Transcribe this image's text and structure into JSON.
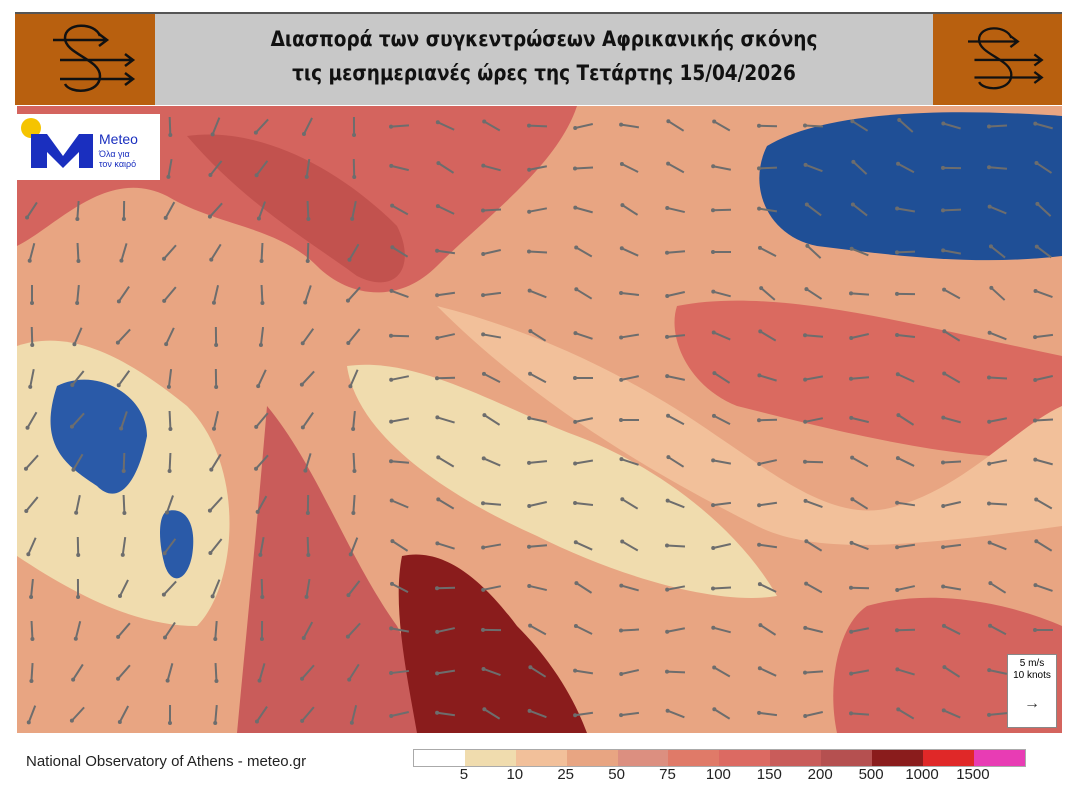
{
  "header": {
    "title_line1": "Διασπορά των συγκεντρώσεων Αφρικανικής σκόνης",
    "title_line2": "τις μεσημεριανές ώρες της Τετάρτης 15/04/2026",
    "badge_icon": "dust-wind-icon"
  },
  "logo": {
    "name": "Meteo",
    "tagline_line1": "Όλα για",
    "tagline_line2": "τον καιρό",
    "sun_color": "#f5c400",
    "brand_color": "#1a2fbf"
  },
  "wind_scale": {
    "line1": "5 m/s",
    "line2": "10 knots",
    "arrow": "→"
  },
  "footer": {
    "credit": "National Observatory of Athens - meteo.gr"
  },
  "legend": {
    "colors": [
      "#ffffff",
      "#f0dcae",
      "#f2c09a",
      "#e8a582",
      "#dc8f80",
      "#e07a68",
      "#dc6a62",
      "#c95c5a",
      "#b55050",
      "#8a1c1c",
      "#e02828",
      "#e83cb4"
    ],
    "labels": [
      "5",
      "10",
      "25",
      "50",
      "75",
      "100",
      "150",
      "200",
      "500",
      "1000",
      "1500"
    ]
  }
}
